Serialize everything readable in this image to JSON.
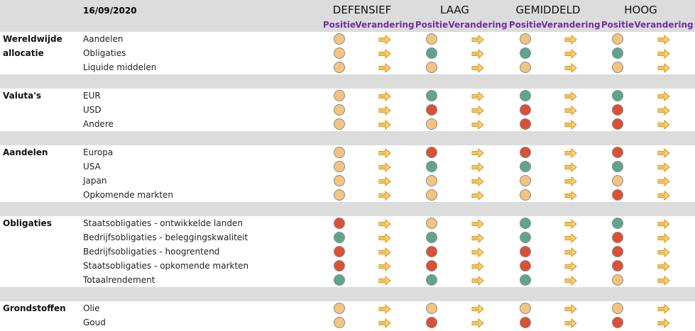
{
  "header": {
    "date": "16/09/2020",
    "scenarios": [
      "DEFENSIEF",
      "LAAG",
      "GEMIDDELD",
      "HOOG"
    ],
    "columns": [
      "Positie",
      "Verandering"
    ]
  },
  "groups": [
    {
      "label": "Wereldwijde allocatie",
      "rows": [
        {
          "label": "Aandelen",
          "positions": [
            "#f2c480",
            "#f2c480",
            "#f2c480",
            "#f2c480"
          ]
        },
        {
          "label": "Obligaties",
          "positions": [
            "#f2c480",
            "#5fa58e",
            "#5fa58e",
            "#5fa58e"
          ]
        },
        {
          "label": "Liquide middelen",
          "positions": [
            "#f2c480",
            "#f2c480",
            "#f2c480",
            "#f2c480"
          ]
        }
      ]
    },
    {
      "label": "Valuta's",
      "rows": [
        {
          "label": "EUR",
          "positions": [
            "#f2c480",
            "#5fa58e",
            "#5fa58e",
            "#5fa58e"
          ]
        },
        {
          "label": "USD",
          "positions": [
            "#f2c480",
            "#dc5034",
            "#dc5034",
            "#dc5034"
          ]
        },
        {
          "label": "Andere",
          "positions": [
            "#f2c480",
            "#f2c480",
            "#dc5034",
            "#dc5034"
          ]
        }
      ]
    },
    {
      "label": "Aandelen",
      "rows": [
        {
          "label": "Europa",
          "positions": [
            "#f2c480",
            "#dc5034",
            "#dc5034",
            "#dc5034"
          ]
        },
        {
          "label": "USA",
          "positions": [
            "#f2c480",
            "#5fa58e",
            "#5fa58e",
            "#5fa58e"
          ]
        },
        {
          "label": "Japan",
          "positions": [
            "#f2c480",
            "#f2c480",
            "#f2c480",
            "#f2c480"
          ]
        },
        {
          "label": "Opkomende markten",
          "positions": [
            "#f2c480",
            "#f2c480",
            "#f2c480",
            "#dc5034"
          ]
        }
      ]
    },
    {
      "label": "Obligaties",
      "rows": [
        {
          "label": "Staatsobligaties - ontwikkelde landen",
          "positions": [
            "#dc5034",
            "#f2c480",
            "#5fa58e",
            "#5fa58e"
          ]
        },
        {
          "label": "Bedrijfsobligaties - beleggingskwaliteit",
          "positions": [
            "#5fa58e",
            "#5fa58e",
            "#5fa58e",
            "#dc5034"
          ]
        },
        {
          "label": "Bedrijfsobligaties - hoogrentend",
          "positions": [
            "#dc5034",
            "#dc5034",
            "#dc5034",
            "#dc5034"
          ]
        },
        {
          "label": "Staatsobligaties - opkomende markten",
          "positions": [
            "#dc5034",
            "#dc5034",
            "#dc5034",
            "#dc5034"
          ]
        },
        {
          "label": "Totaalrendement",
          "positions": [
            "#5fa58e",
            "#5fa58e",
            "#5fa58e",
            "#f2c480"
          ]
        }
      ]
    },
    {
      "label": "Grondstoffen",
      "rows": [
        {
          "label": "Olie",
          "positions": [
            "#f2c480",
            "#f2c480",
            "#f2c480",
            "#f2c480"
          ]
        },
        {
          "label": "Goud",
          "positions": [
            "#f2c480",
            "#dc5034",
            "#dc5034",
            "#dc5034"
          ]
        }
      ]
    }
  ]
}
